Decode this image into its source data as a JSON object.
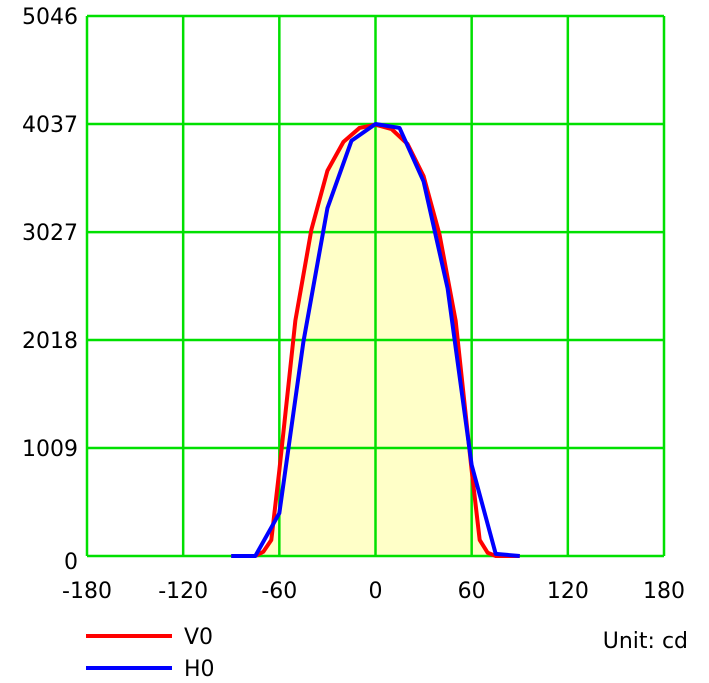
{
  "chart_data": {
    "type": "line",
    "xlim": [
      -180,
      180
    ],
    "ylim": [
      0,
      5046
    ],
    "x_ticks": [
      "-180",
      "-120",
      "-60",
      "0",
      "60",
      "120",
      "180"
    ],
    "y_ticks": [
      "0",
      "1009",
      "2018",
      "3027",
      "4037",
      "5046"
    ],
    "grid": true,
    "legend_position": "bottom-left",
    "unit_label": "Unit: cd",
    "fill_color": "#ffffc8",
    "grid_color": "#00e000",
    "series": [
      {
        "name": "V0",
        "color": "#ff0000",
        "x": [
          -90,
          -75,
          -70,
          -65,
          -60,
          -50,
          -40,
          -30,
          -20,
          -10,
          0,
          10,
          20,
          30,
          40,
          50,
          55,
          60,
          65,
          70,
          75,
          90
        ],
        "y": [
          0,
          0,
          40,
          150,
          800,
          2200,
          3050,
          3600,
          3870,
          4000,
          4030,
          3990,
          3850,
          3550,
          3000,
          2200,
          1500,
          800,
          150,
          30,
          0,
          0
        ]
      },
      {
        "name": "H0",
        "color": "#0000ff",
        "x": [
          -90,
          -75,
          -60,
          -45,
          -30,
          -15,
          0,
          15,
          30,
          45,
          60,
          75,
          90
        ],
        "y": [
          0,
          0,
          400,
          2000,
          3250,
          3880,
          4037,
          4000,
          3500,
          2500,
          850,
          20,
          0
        ]
      }
    ]
  }
}
